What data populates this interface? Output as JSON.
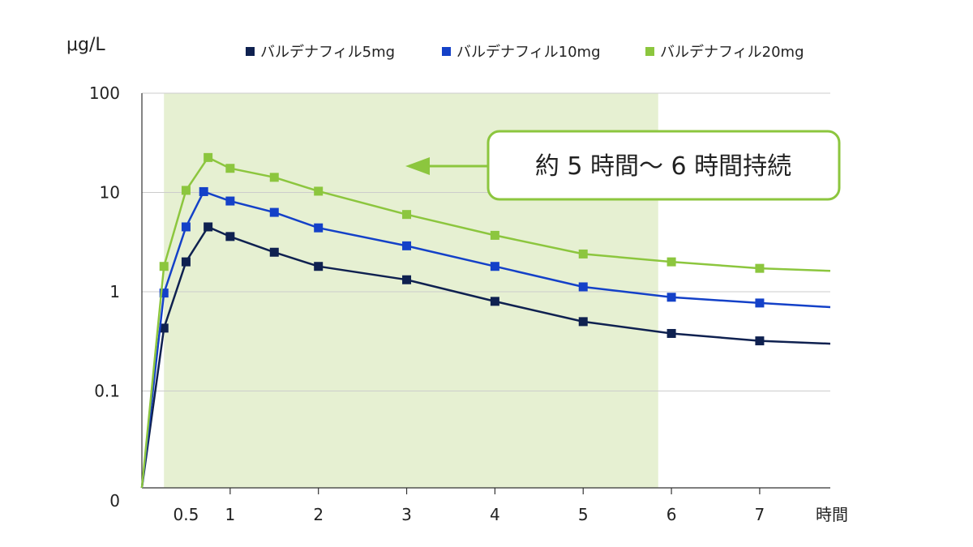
{
  "chart_data": {
    "type": "line",
    "y_unit": "μg/L",
    "x_unit": "時間",
    "yscale": "log",
    "y_ticks": [
      "100",
      "10",
      "1",
      "0.1",
      "0"
    ],
    "x_ticks": [
      "0.5",
      "1",
      "2",
      "3",
      "4",
      "5",
      "6",
      "7"
    ],
    "xlim": [
      0,
      7.8
    ],
    "x_tick_values": [
      0.5,
      1,
      2,
      3,
      4,
      5,
      6,
      7
    ],
    "highlight_region": [
      0.25,
      5.85
    ],
    "annotation": "約 5 時間〜 6 時間持続",
    "colors": {
      "highlight": "#e6f0d2",
      "callout_border": "#8cc63e",
      "arrow": "#8cc63e",
      "grid": "#cccccc",
      "axis": "#333333"
    },
    "series": [
      {
        "name": "バルデナフィル5mg",
        "color": "#0f2150",
        "x": [
          0,
          0.25,
          0.5,
          0.75,
          1,
          1.5,
          2,
          3,
          4,
          5,
          6,
          7,
          7.8
        ],
        "y": [
          0,
          0.43,
          2.0,
          4.5,
          3.6,
          2.5,
          1.8,
          1.32,
          0.8,
          0.5,
          0.38,
          0.32,
          0.3
        ]
      },
      {
        "name": "バルデナフィル10mg",
        "color": "#1441c8",
        "x": [
          0,
          0.25,
          0.5,
          0.7,
          1,
          1.5,
          2,
          3,
          4,
          5,
          6,
          7,
          7.8
        ],
        "y": [
          0,
          0.97,
          4.5,
          10.2,
          8.2,
          6.3,
          4.4,
          2.9,
          1.8,
          1.12,
          0.88,
          0.77,
          0.7
        ]
      },
      {
        "name": "バルデナフィル20mg",
        "color": "#8cc63e",
        "x": [
          0,
          0.25,
          0.5,
          0.75,
          1,
          1.5,
          2,
          3,
          4,
          5,
          6,
          7,
          7.8
        ],
        "y": [
          0,
          1.8,
          10.5,
          22.5,
          17.5,
          14.2,
          10.3,
          6.0,
          3.7,
          2.4,
          2.0,
          1.72,
          1.62
        ]
      }
    ]
  }
}
